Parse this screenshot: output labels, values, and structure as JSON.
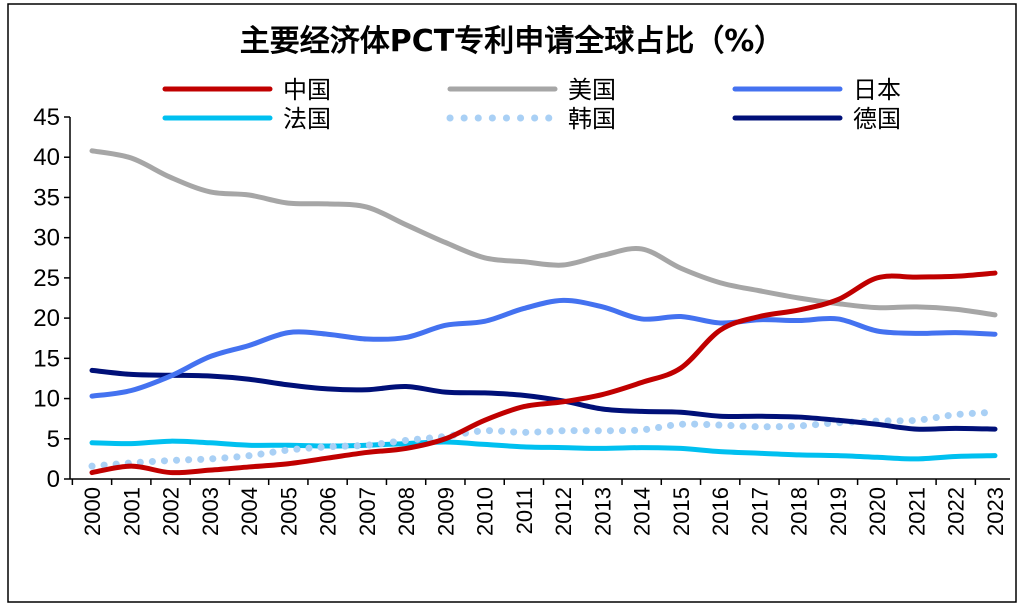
{
  "chart_data": {
    "type": "line",
    "title": "主要经济体PCT专利申请全球占比（%）",
    "xlabel": "",
    "ylabel": "",
    "ylim": [
      0,
      45
    ],
    "y_ticks": [
      0,
      5,
      10,
      15,
      20,
      25,
      30,
      35,
      40,
      45
    ],
    "grid": false,
    "legend_position": "top",
    "x": [
      "2000",
      "2001",
      "2002",
      "2003",
      "2004",
      "2005",
      "2006",
      "2007",
      "2008",
      "2009",
      "2010",
      "2011",
      "2012",
      "2013",
      "2014",
      "2015",
      "2016",
      "2017",
      "2018",
      "2019",
      "2020",
      "2021",
      "2022",
      "2023"
    ],
    "series": [
      {
        "name": "中国",
        "color": "#C00000",
        "style": "solid",
        "values": [
          0.8,
          1.6,
          0.8,
          1.1,
          1.5,
          1.9,
          2.6,
          3.3,
          3.8,
          5.0,
          7.3,
          9.0,
          9.6,
          10.5,
          12.0,
          13.8,
          18.5,
          20.2,
          21.0,
          22.3,
          25.0,
          25.1,
          25.2,
          25.6
        ]
      },
      {
        "name": "美国",
        "color": "#A6A6A6",
        "style": "solid",
        "values": [
          40.8,
          39.9,
          37.5,
          35.7,
          35.3,
          34.3,
          34.2,
          33.8,
          31.6,
          29.4,
          27.5,
          27.0,
          26.6,
          27.8,
          28.6,
          26.2,
          24.4,
          23.4,
          22.5,
          21.8,
          21.3,
          21.4,
          21.1,
          20.4
        ]
      },
      {
        "name": "日本",
        "color": "#4472F0",
        "style": "solid",
        "values": [
          10.3,
          11.0,
          12.8,
          15.2,
          16.6,
          18.2,
          18.0,
          17.4,
          17.6,
          19.1,
          19.6,
          21.2,
          22.2,
          21.4,
          19.9,
          20.2,
          19.4,
          19.8,
          19.7,
          19.9,
          18.4,
          18.1,
          18.2,
          18.0
        ]
      },
      {
        "name": "法国",
        "color": "#00C0F0",
        "style": "solid",
        "values": [
          4.5,
          4.4,
          4.7,
          4.5,
          4.2,
          4.2,
          4.1,
          4.2,
          4.4,
          4.6,
          4.3,
          4.0,
          3.9,
          3.8,
          3.9,
          3.8,
          3.4,
          3.2,
          3.0,
          2.9,
          2.7,
          2.5,
          2.8,
          2.9
        ]
      },
      {
        "name": "韩国",
        "color": "#A9D0F5",
        "style": "dotted",
        "values": [
          1.6,
          2.0,
          2.3,
          2.5,
          2.9,
          3.6,
          4.0,
          4.2,
          4.8,
          5.3,
          6.0,
          5.8,
          6.0,
          6.0,
          6.1,
          6.8,
          6.7,
          6.5,
          6.6,
          7.0,
          7.2,
          7.3,
          8.0,
          8.3
        ]
      },
      {
        "name": "德国",
        "color": "#001078",
        "style": "solid",
        "values": [
          13.5,
          13.0,
          12.9,
          12.8,
          12.4,
          11.7,
          11.2,
          11.1,
          11.5,
          10.8,
          10.7,
          10.4,
          9.7,
          8.7,
          8.4,
          8.3,
          7.8,
          7.8,
          7.7,
          7.3,
          6.8,
          6.2,
          6.3,
          6.2
        ]
      }
    ]
  }
}
